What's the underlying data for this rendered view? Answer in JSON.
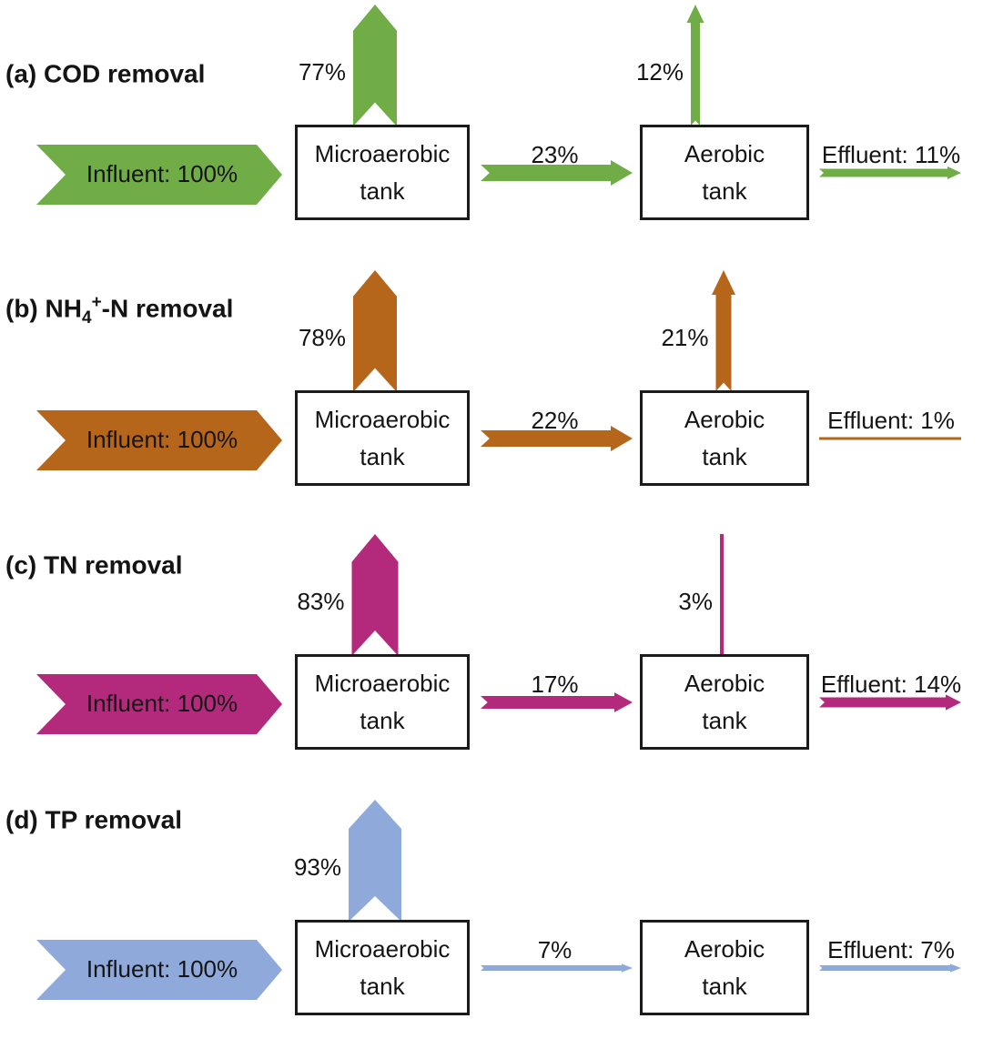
{
  "figure": {
    "tank1": [
      "Microaerobic",
      "tank"
    ],
    "tank2": [
      "Aerobic",
      "tank"
    ],
    "panels": [
      {
        "id": "a",
        "title": {
          "pre": "(a) COD removal",
          "sub": "",
          "sup": "",
          "post": ""
        },
        "color": "#70AD47",
        "influent": {
          "label": "Influent: 100%",
          "pct": 100
        },
        "sludge_up": {
          "label": "77%",
          "pct": 77
        },
        "transfer": {
          "label": "23%",
          "pct": 23
        },
        "aerobic_up": {
          "label": "12%",
          "pct": 12
        },
        "effluent": {
          "label": "Effluent: 11%",
          "pct": 11
        }
      },
      {
        "id": "b",
        "title": {
          "pre": "(b) NH",
          "sub": "4",
          "sup": "+",
          "post": "-N removal"
        },
        "color": "#B5661B",
        "influent": {
          "label": "Influent: 100%",
          "pct": 100
        },
        "sludge_up": {
          "label": "78%",
          "pct": 78
        },
        "transfer": {
          "label": "22%",
          "pct": 22
        },
        "aerobic_up": {
          "label": "21%",
          "pct": 21
        },
        "effluent": {
          "label": "Effluent: 1%",
          "pct": 1
        }
      },
      {
        "id": "c",
        "title": {
          "pre": "(c) TN removal",
          "sub": "",
          "sup": "",
          "post": ""
        },
        "color": "#B32A7C",
        "influent": {
          "label": "Influent: 100%",
          "pct": 100
        },
        "sludge_up": {
          "label": "83%",
          "pct": 83
        },
        "transfer": {
          "label": "17%",
          "pct": 17
        },
        "aerobic_up": {
          "label": "3%",
          "pct": 3
        },
        "effluent": {
          "label": "Effluent: 14%",
          "pct": 14
        }
      },
      {
        "id": "d",
        "title": {
          "pre": "(d) TP removal",
          "sub": "",
          "sup": "",
          "post": ""
        },
        "color": "#8FA9DB",
        "influent": {
          "label": "Influent: 100%",
          "pct": 100
        },
        "sludge_up": {
          "label": "93%",
          "pct": 93
        },
        "transfer": {
          "label": "7%",
          "pct": 7
        },
        "aerobic_up": null,
        "effluent": {
          "label": "Effluent: 7%",
          "pct": 7
        }
      }
    ]
  }
}
